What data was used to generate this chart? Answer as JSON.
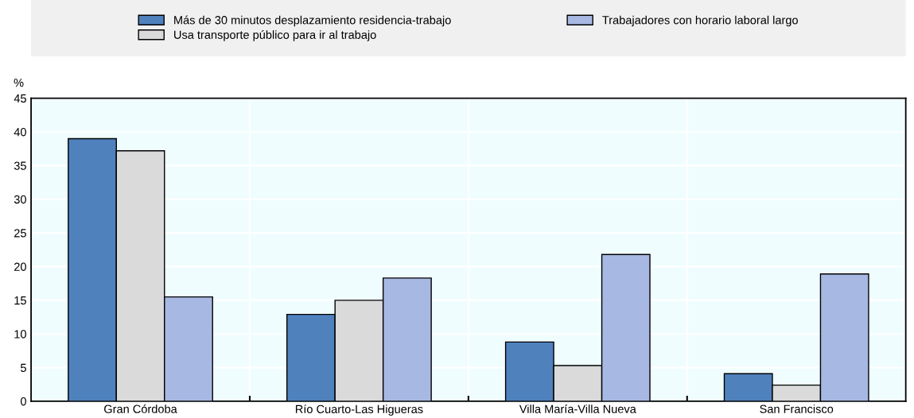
{
  "chart_data": {
    "type": "bar",
    "ylabel": "%",
    "categories": [
      "Gran Córdoba",
      "Río Cuarto-Las Higueras",
      "Villa María-Villa Nueva",
      "San Francisco"
    ],
    "series": [
      {
        "name": "Más de 30 minutos desplazamiento residencia-trabajo",
        "color": "#4f81bd",
        "values": [
          39.0,
          12.9,
          8.8,
          4.1
        ]
      },
      {
        "name": "Usa transporte público para ir al trabajo",
        "color": "#dadada",
        "values": [
          37.2,
          15.0,
          5.3,
          2.4
        ]
      },
      {
        "name": "Trabajadores con horario laboral largo",
        "color": "#a7b8e2",
        "values": [
          15.5,
          18.3,
          21.8,
          18.9
        ]
      }
    ],
    "ylim": [
      0,
      45
    ],
    "yticks": [
      0,
      5,
      10,
      15,
      20,
      25,
      30,
      35,
      40,
      45
    ],
    "grid": "y",
    "legend": "top"
  }
}
